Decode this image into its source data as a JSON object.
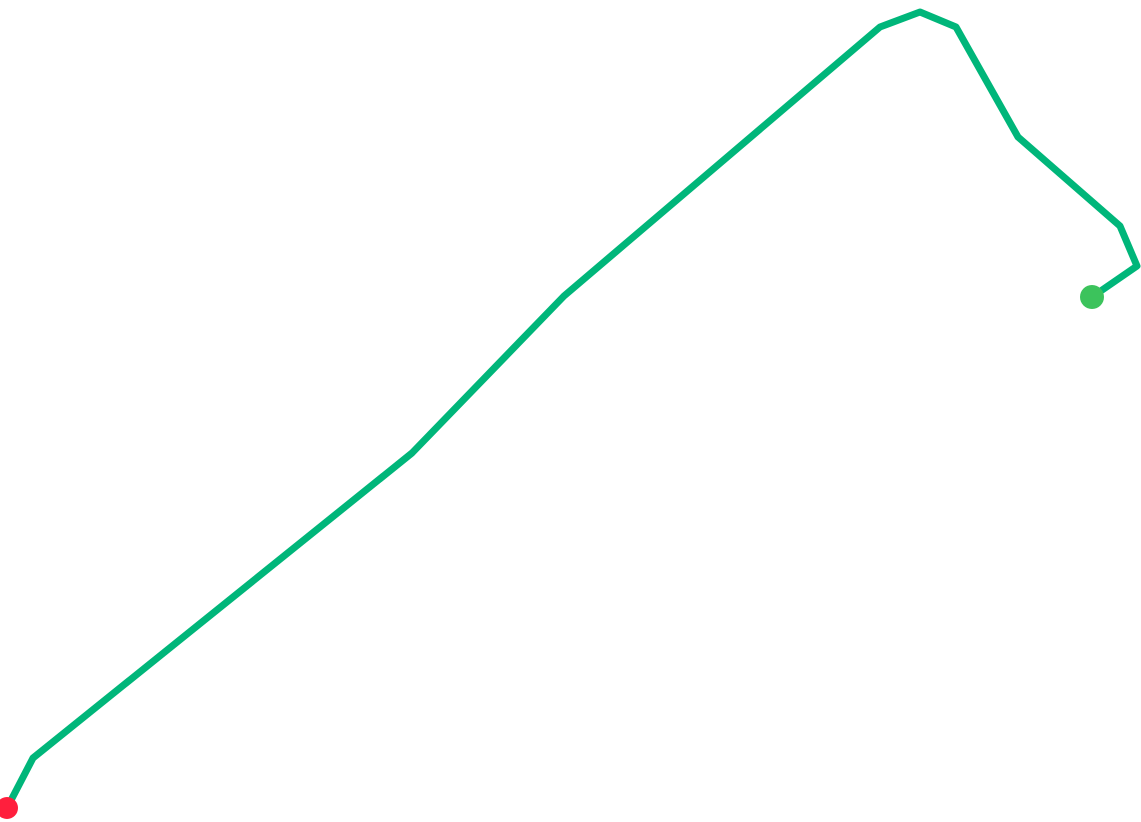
{
  "map": {
    "background_color": "#ffffff",
    "route": {
      "color": "#00b67a"
    },
    "markers": {
      "start": {
        "color": "#3cc35c",
        "icon": "circle-marker"
      },
      "end": {
        "color": "#ff1f3d",
        "icon": "circle-marker"
      }
    }
  }
}
